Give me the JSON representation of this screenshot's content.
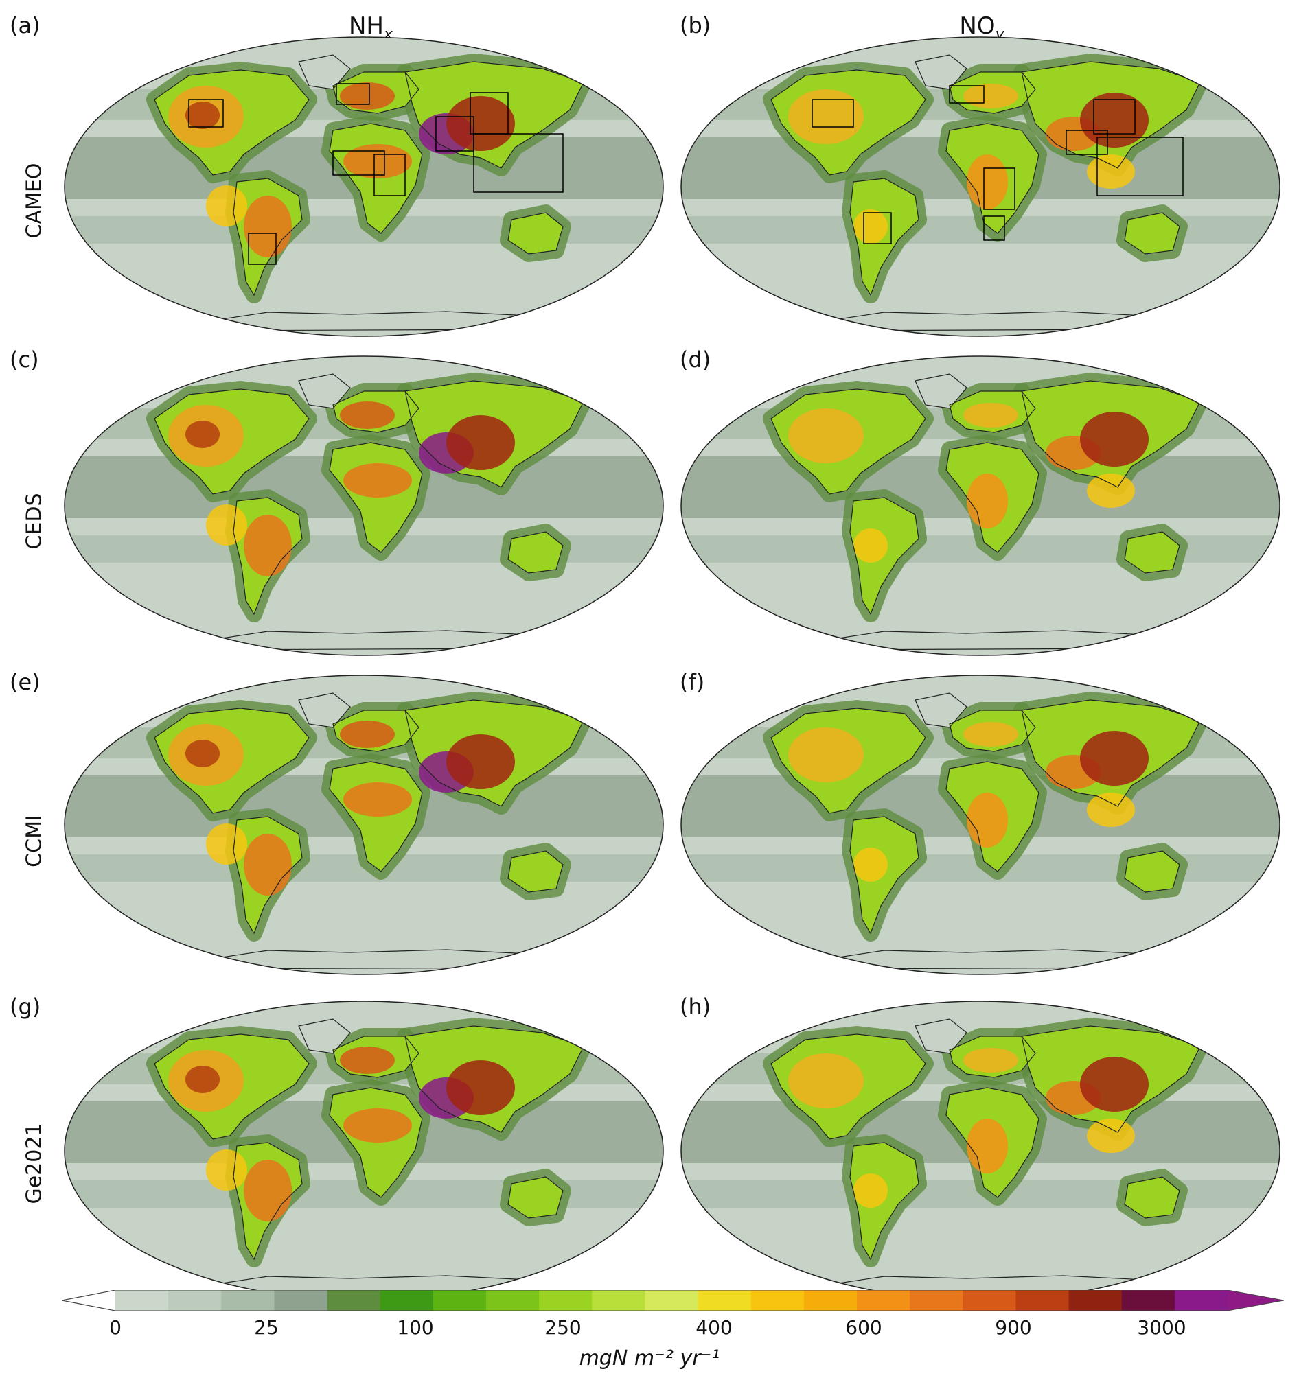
{
  "columns": [
    {
      "label": "NH",
      "sub": "x"
    },
    {
      "label": "NO",
      "sub": "y"
    }
  ],
  "rows": [
    "CAMEO",
    "CEDS",
    "CCMI",
    "Ge2021"
  ],
  "panels": [
    "(a)",
    "(b)",
    "(c)",
    "(d)",
    "(e)",
    "(f)",
    "(g)",
    "(h)"
  ],
  "colorbar": {
    "colors": [
      "#cbd7cb",
      "#bccbbc",
      "#a9bba9",
      "#8fa28f",
      "#5f8d3f",
      "#3e9a14",
      "#5db312",
      "#7cc419",
      "#9ad322",
      "#b9e03a",
      "#d6e95a",
      "#f0dc22",
      "#f7c510",
      "#f6ad0c",
      "#f39117",
      "#e8761b",
      "#d75a18",
      "#bc3f14",
      "#8f2211",
      "#6a0f3b",
      "#8a1a8a"
    ],
    "min_arrow": "#ffffff",
    "max_arrow": "#8e1a86",
    "ticks": [
      "0",
      "25",
      "100",
      "250",
      "400",
      "600",
      "900",
      "3000"
    ],
    "unit": "mgN  m⁻²  yr⁻¹"
  }
}
